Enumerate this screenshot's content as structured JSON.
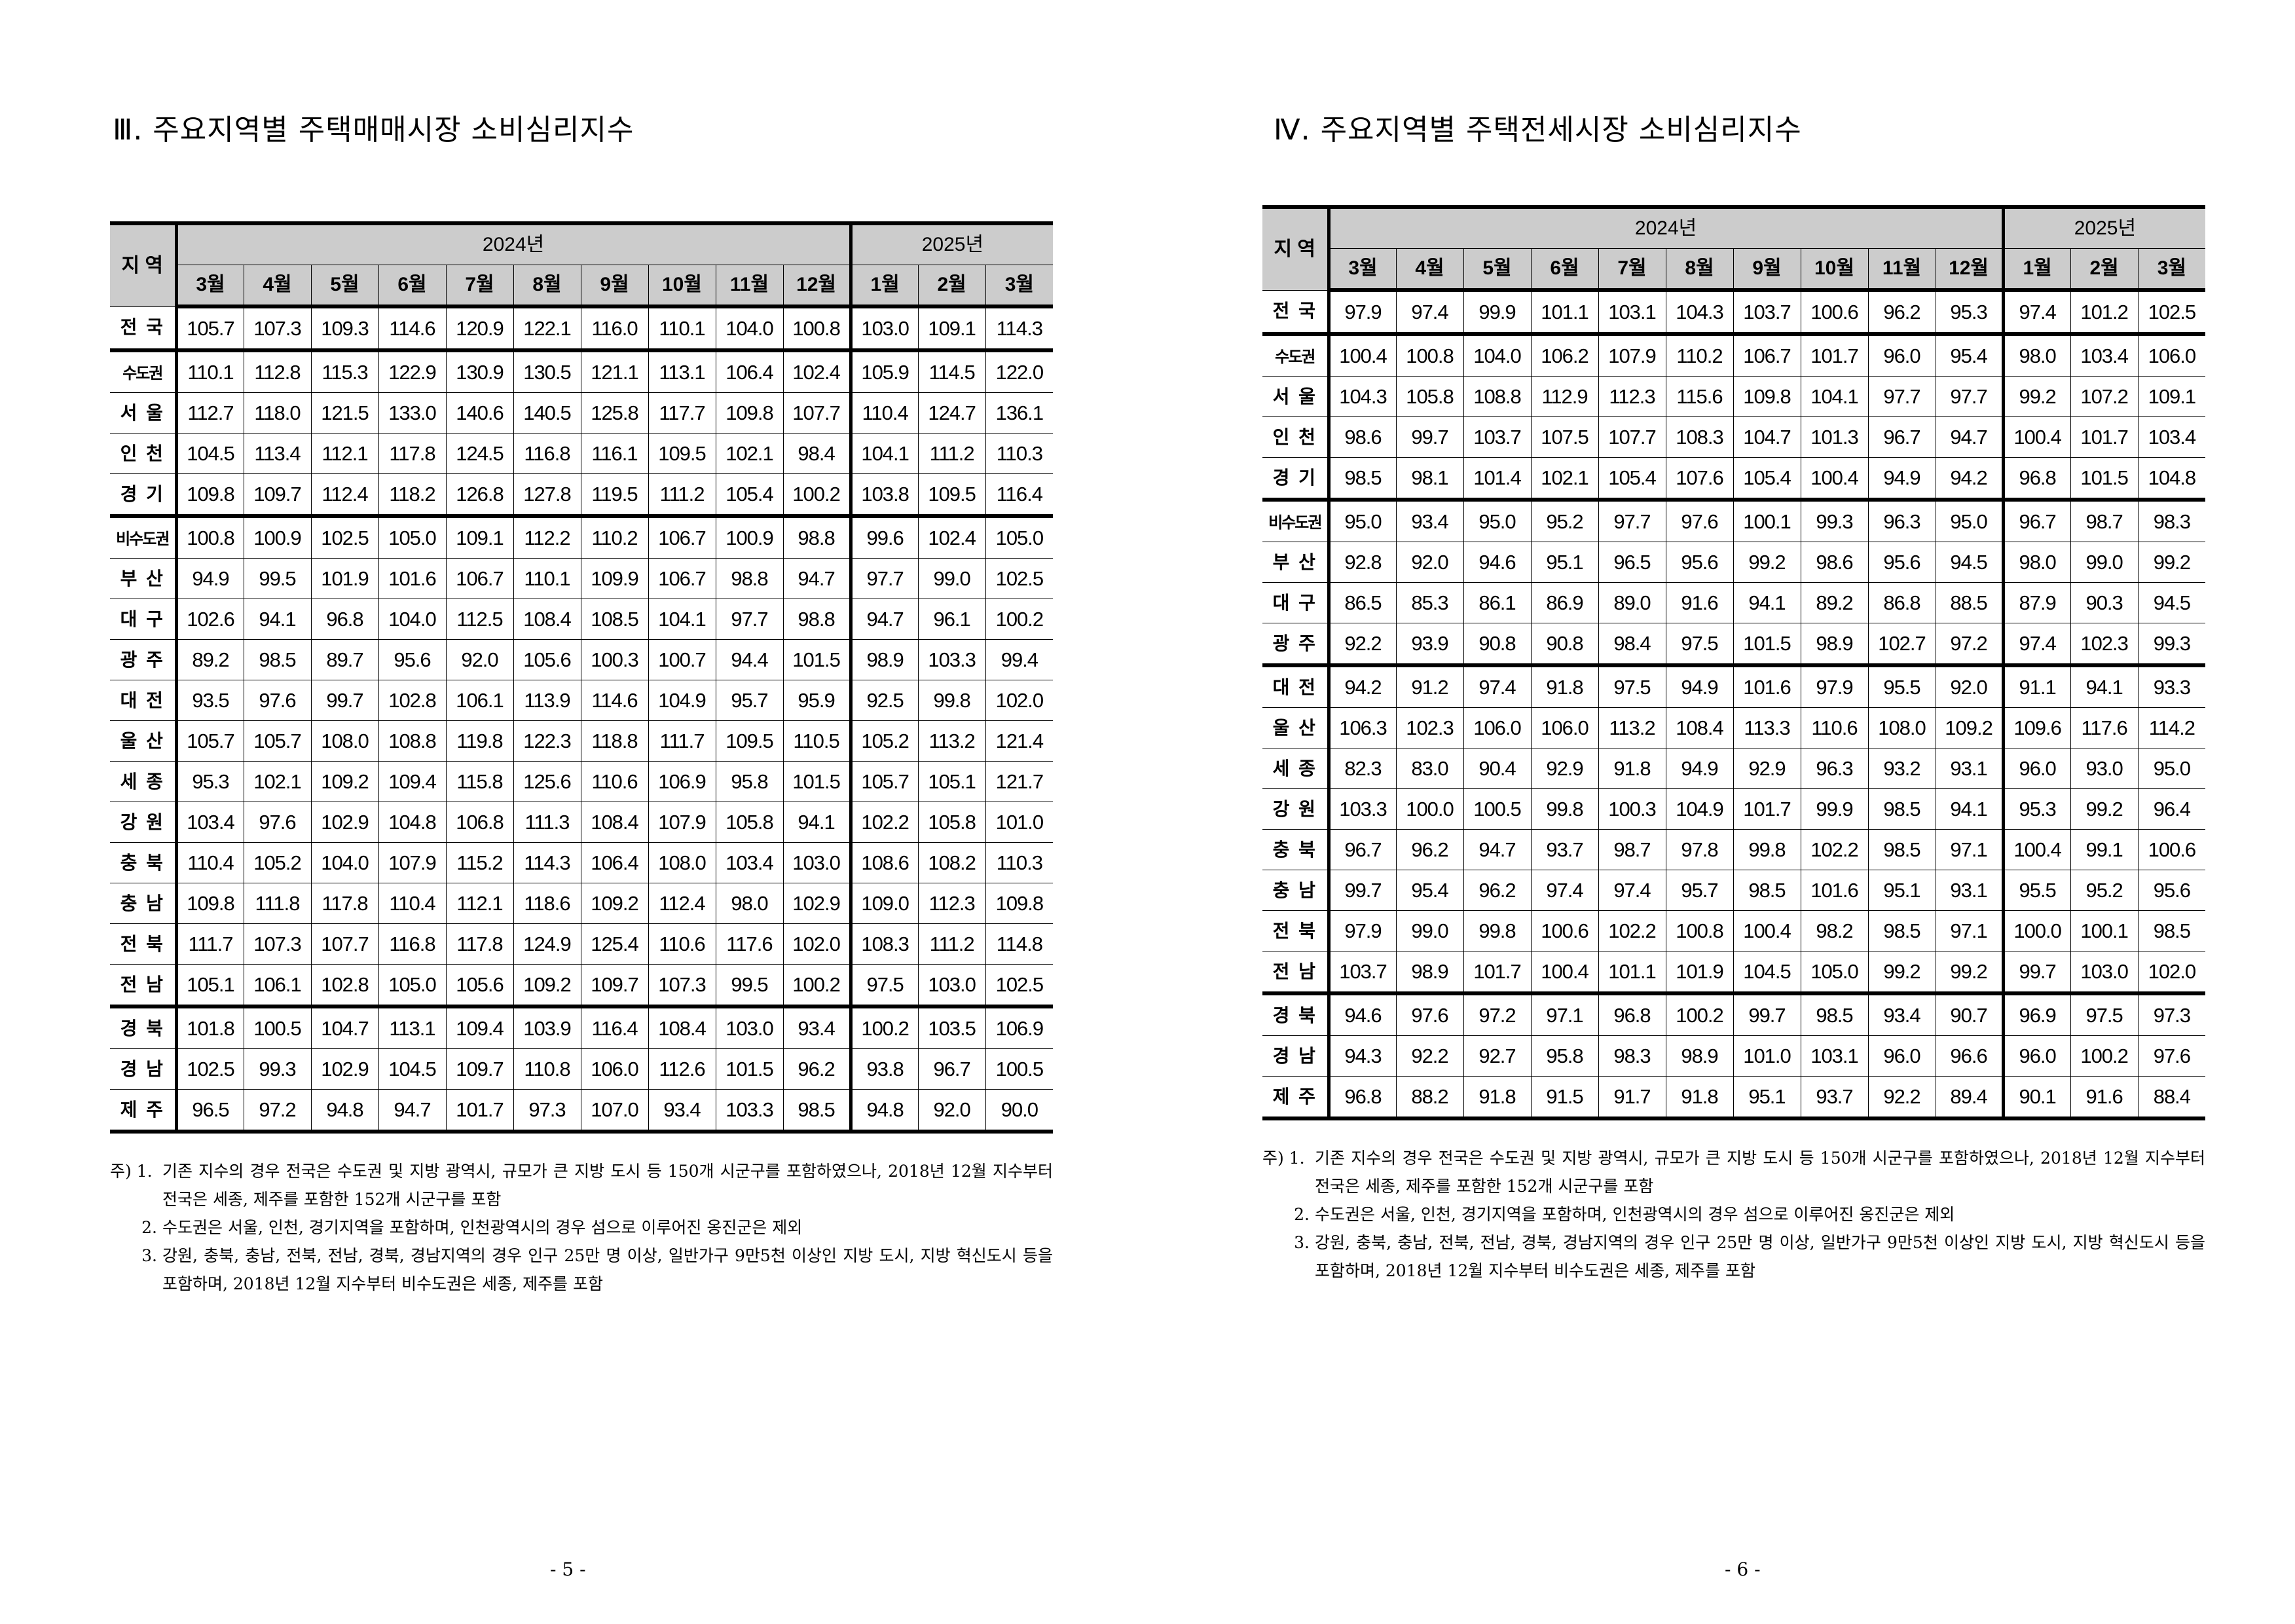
{
  "pages": [
    {
      "title": "Ⅲ. 주요지역별 주택매매시장 소비심리지수",
      "page_number": "- 5 -",
      "header": {
        "region_label": "지 역",
        "year1": "2024년",
        "year2": "2025년",
        "months": [
          "3월",
          "4월",
          "5월",
          "6월",
          "7월",
          "8월",
          "9월",
          "10월",
          "11월",
          "12월",
          "1월",
          "2월",
          "3월"
        ]
      },
      "rows": [
        {
          "region": "전 국",
          "values": [
            "105.7",
            "107.3",
            "109.3",
            "114.6",
            "120.9",
            "122.1",
            "116.0",
            "110.1",
            "104.0",
            "100.8",
            "103.0",
            "109.1",
            "114.3"
          ]
        },
        {
          "region": "수도권",
          "values": [
            "110.1",
            "112.8",
            "115.3",
            "122.9",
            "130.9",
            "130.5",
            "121.1",
            "113.1",
            "106.4",
            "102.4",
            "105.9",
            "114.5",
            "122.0"
          ]
        },
        {
          "region": "서 울",
          "values": [
            "112.7",
            "118.0",
            "121.5",
            "133.0",
            "140.6",
            "140.5",
            "125.8",
            "117.7",
            "109.8",
            "107.7",
            "110.4",
            "124.7",
            "136.1"
          ]
        },
        {
          "region": "인 천",
          "values": [
            "104.5",
            "113.4",
            "112.1",
            "117.8",
            "124.5",
            "116.8",
            "116.1",
            "109.5",
            "102.1",
            "98.4",
            "104.1",
            "111.2",
            "110.3"
          ]
        },
        {
          "region": "경 기",
          "values": [
            "109.8",
            "109.7",
            "112.4",
            "118.2",
            "126.8",
            "127.8",
            "119.5",
            "111.2",
            "105.4",
            "100.2",
            "103.8",
            "109.5",
            "116.4"
          ]
        },
        {
          "region": "비수도권",
          "values": [
            "100.8",
            "100.9",
            "102.5",
            "105.0",
            "109.1",
            "112.2",
            "110.2",
            "106.7",
            "100.9",
            "98.8",
            "99.6",
            "102.4",
            "105.0"
          ]
        },
        {
          "region": "부 산",
          "values": [
            "94.9",
            "99.5",
            "101.9",
            "101.6",
            "106.7",
            "110.1",
            "109.9",
            "106.7",
            "98.8",
            "94.7",
            "97.7",
            "99.0",
            "102.5"
          ]
        },
        {
          "region": "대 구",
          "values": [
            "102.6",
            "94.1",
            "96.8",
            "104.0",
            "112.5",
            "108.4",
            "108.5",
            "104.1",
            "97.7",
            "98.8",
            "94.7",
            "96.1",
            "100.2"
          ]
        },
        {
          "region": "광 주",
          "values": [
            "89.2",
            "98.5",
            "89.7",
            "95.6",
            "92.0",
            "105.6",
            "100.3",
            "100.7",
            "94.4",
            "101.5",
            "98.9",
            "103.3",
            "99.4"
          ]
        },
        {
          "region": "대 전",
          "values": [
            "93.5",
            "97.6",
            "99.7",
            "102.8",
            "106.1",
            "113.9",
            "114.6",
            "104.9",
            "95.7",
            "95.9",
            "92.5",
            "99.8",
            "102.0"
          ]
        },
        {
          "region": "울 산",
          "values": [
            "105.7",
            "105.7",
            "108.0",
            "108.8",
            "119.8",
            "122.3",
            "118.8",
            "111.7",
            "109.5",
            "110.5",
            "105.2",
            "113.2",
            "121.4"
          ]
        },
        {
          "region": "세 종",
          "values": [
            "95.3",
            "102.1",
            "109.2",
            "109.4",
            "115.8",
            "125.6",
            "110.6",
            "106.9",
            "95.8",
            "101.5",
            "105.7",
            "105.1",
            "121.7"
          ]
        },
        {
          "region": "강 원",
          "values": [
            "103.4",
            "97.6",
            "102.9",
            "104.8",
            "106.8",
            "111.3",
            "108.4",
            "107.9",
            "105.8",
            "94.1",
            "102.2",
            "105.8",
            "101.0"
          ]
        },
        {
          "region": "충 북",
          "values": [
            "110.4",
            "105.2",
            "104.0",
            "107.9",
            "115.2",
            "114.3",
            "106.4",
            "108.0",
            "103.4",
            "103.0",
            "108.6",
            "108.2",
            "110.3"
          ]
        },
        {
          "region": "충 남",
          "values": [
            "109.8",
            "111.8",
            "117.8",
            "110.4",
            "112.1",
            "118.6",
            "109.2",
            "112.4",
            "98.0",
            "102.9",
            "109.0",
            "112.3",
            "109.8"
          ]
        },
        {
          "region": "전 북",
          "values": [
            "111.7",
            "107.3",
            "107.7",
            "116.8",
            "117.8",
            "124.9",
            "125.4",
            "110.6",
            "117.6",
            "102.0",
            "108.3",
            "111.2",
            "114.8"
          ]
        },
        {
          "region": "전 남",
          "values": [
            "105.1",
            "106.1",
            "102.8",
            "105.0",
            "105.6",
            "109.2",
            "109.7",
            "107.3",
            "99.5",
            "100.2",
            "97.5",
            "103.0",
            "102.5"
          ]
        },
        {
          "region": "경 북",
          "values": [
            "101.8",
            "100.5",
            "104.7",
            "113.1",
            "109.4",
            "103.9",
            "116.4",
            "108.4",
            "103.0",
            "93.4",
            "100.2",
            "103.5",
            "106.9"
          ]
        },
        {
          "region": "경 남",
          "values": [
            "102.5",
            "99.3",
            "102.9",
            "104.5",
            "109.7",
            "110.8",
            "106.0",
            "112.6",
            "101.5",
            "96.2",
            "93.8",
            "96.7",
            "100.5"
          ]
        },
        {
          "region": "제 주",
          "values": [
            "96.5",
            "97.2",
            "94.8",
            "94.7",
            "101.7",
            "97.3",
            "107.0",
            "93.4",
            "103.3",
            "98.5",
            "94.8",
            "92.0",
            "90.0"
          ]
        }
      ],
      "notes": [
        {
          "lead": "주) 1.",
          "text": "기존 지수의 경우 전국은 수도권 및 지방 광역시, 규모가 큰 지방 도시 등 150개 시군구를 포함하였으나, 2018년 12월 지수부터 전국은 세종, 제주를 포함한 152개 시군구를 포함"
        },
        {
          "lead": "2.",
          "text": "수도권은 서울, 인천, 경기지역을 포함하며, 인천광역시의 경우 섬으로 이루어진 옹진군은 제외"
        },
        {
          "lead": "3.",
          "text": "강원, 충북, 충남, 전북, 전남, 경북, 경남지역의 경우 인구 25만 명 이상, 일반가구 9만5천 이상인 지방 도시, 지방 혁신도시 등을 포함하며, 2018년 12월 지수부터 비수도권은 세종, 제주를 포함"
        }
      ]
    },
    {
      "title": "Ⅳ. 주요지역별 주택전세시장 소비심리지수",
      "page_number": "- 6 -",
      "header": {
        "region_label": "지 역",
        "year1": "2024년",
        "year2": "2025년",
        "months": [
          "3월",
          "4월",
          "5월",
          "6월",
          "7월",
          "8월",
          "9월",
          "10월",
          "11월",
          "12월",
          "1월",
          "2월",
          "3월"
        ]
      },
      "rows": [
        {
          "region": "전 국",
          "values": [
            "97.9",
            "97.4",
            "99.9",
            "101.1",
            "103.1",
            "104.3",
            "103.7",
            "100.6",
            "96.2",
            "95.3",
            "97.4",
            "101.2",
            "102.5"
          ]
        },
        {
          "region": "수도권",
          "values": [
            "100.4",
            "100.8",
            "104.0",
            "106.2",
            "107.9",
            "110.2",
            "106.7",
            "101.7",
            "96.0",
            "95.4",
            "98.0",
            "103.4",
            "106.0"
          ]
        },
        {
          "region": "서 울",
          "values": [
            "104.3",
            "105.8",
            "108.8",
            "112.9",
            "112.3",
            "115.6",
            "109.8",
            "104.1",
            "97.7",
            "97.7",
            "99.2",
            "107.2",
            "109.1"
          ]
        },
        {
          "region": "인 천",
          "values": [
            "98.6",
            "99.7",
            "103.7",
            "107.5",
            "107.7",
            "108.3",
            "104.7",
            "101.3",
            "96.7",
            "94.7",
            "100.4",
            "101.7",
            "103.4"
          ]
        },
        {
          "region": "경 기",
          "values": [
            "98.5",
            "98.1",
            "101.4",
            "102.1",
            "105.4",
            "107.6",
            "105.4",
            "100.4",
            "94.9",
            "94.2",
            "96.8",
            "101.5",
            "104.8"
          ]
        },
        {
          "region": "비수도권",
          "values": [
            "95.0",
            "93.4",
            "95.0",
            "95.2",
            "97.7",
            "97.6",
            "100.1",
            "99.3",
            "96.3",
            "95.0",
            "96.7",
            "98.7",
            "98.3"
          ]
        },
        {
          "region": "부 산",
          "values": [
            "92.8",
            "92.0",
            "94.6",
            "95.1",
            "96.5",
            "95.6",
            "99.2",
            "98.6",
            "95.6",
            "94.5",
            "98.0",
            "99.0",
            "99.2"
          ]
        },
        {
          "region": "대 구",
          "values": [
            "86.5",
            "85.3",
            "86.1",
            "86.9",
            "89.0",
            "91.6",
            "94.1",
            "89.2",
            "86.8",
            "88.5",
            "87.9",
            "90.3",
            "94.5"
          ]
        },
        {
          "region": "광 주",
          "values": [
            "92.2",
            "93.9",
            "90.8",
            "90.8",
            "98.4",
            "97.5",
            "101.5",
            "98.9",
            "102.7",
            "97.2",
            "97.4",
            "102.3",
            "99.3"
          ]
        },
        {
          "region": "대 전",
          "values": [
            "94.2",
            "91.2",
            "97.4",
            "91.8",
            "97.5",
            "94.9",
            "101.6",
            "97.9",
            "95.5",
            "92.0",
            "91.1",
            "94.1",
            "93.3"
          ]
        },
        {
          "region": "울 산",
          "values": [
            "106.3",
            "102.3",
            "106.0",
            "106.0",
            "113.2",
            "108.4",
            "113.3",
            "110.6",
            "108.0",
            "109.2",
            "109.6",
            "117.6",
            "114.2"
          ]
        },
        {
          "region": "세 종",
          "values": [
            "82.3",
            "83.0",
            "90.4",
            "92.9",
            "91.8",
            "94.9",
            "92.9",
            "96.3",
            "93.2",
            "93.1",
            "96.0",
            "93.0",
            "95.0"
          ]
        },
        {
          "region": "강 원",
          "values": [
            "103.3",
            "100.0",
            "100.5",
            "99.8",
            "100.3",
            "104.9",
            "101.7",
            "99.9",
            "98.5",
            "94.1",
            "95.3",
            "99.2",
            "96.4"
          ]
        },
        {
          "region": "충 북",
          "values": [
            "96.7",
            "96.2",
            "94.7",
            "93.7",
            "98.7",
            "97.8",
            "99.8",
            "102.2",
            "98.5",
            "97.1",
            "100.4",
            "99.1",
            "100.6"
          ]
        },
        {
          "region": "충 남",
          "values": [
            "99.7",
            "95.4",
            "96.2",
            "97.4",
            "97.4",
            "95.7",
            "98.5",
            "101.6",
            "95.1",
            "93.1",
            "95.5",
            "95.2",
            "95.6"
          ]
        },
        {
          "region": "전 북",
          "values": [
            "97.9",
            "99.0",
            "99.8",
            "100.6",
            "102.2",
            "100.8",
            "100.4",
            "98.2",
            "98.5",
            "97.1",
            "100.0",
            "100.1",
            "98.5"
          ]
        },
        {
          "region": "전 남",
          "values": [
            "103.7",
            "98.9",
            "101.7",
            "100.4",
            "101.1",
            "101.9",
            "104.5",
            "105.0",
            "99.2",
            "99.2",
            "99.7",
            "103.0",
            "102.0"
          ]
        },
        {
          "region": "경 북",
          "values": [
            "94.6",
            "97.6",
            "97.2",
            "97.1",
            "96.8",
            "100.2",
            "99.7",
            "98.5",
            "93.4",
            "90.7",
            "96.9",
            "97.5",
            "97.3"
          ]
        },
        {
          "region": "경 남",
          "values": [
            "94.3",
            "92.2",
            "92.7",
            "95.8",
            "98.3",
            "98.9",
            "101.0",
            "103.1",
            "96.0",
            "96.6",
            "96.0",
            "100.2",
            "97.6"
          ]
        },
        {
          "region": "제 주",
          "values": [
            "96.8",
            "88.2",
            "91.8",
            "91.5",
            "91.7",
            "91.8",
            "95.1",
            "93.7",
            "92.2",
            "89.4",
            "90.1",
            "91.6",
            "88.4"
          ]
        }
      ],
      "notes": [
        {
          "lead": "주) 1.",
          "text": "기존 지수의 경우 전국은 수도권 및 지방 광역시, 규모가 큰 지방 도시 등 150개 시군구를 포함하였으나, 2018년 12월 지수부터 전국은 세종, 제주를 포함한 152개 시군구를 포함"
        },
        {
          "lead": "2.",
          "text": "수도권은 서울, 인천, 경기지역을 포함하며, 인천광역시의 경우 섬으로 이루어진 옹진군은 제외"
        },
        {
          "lead": "3.",
          "text": "강원, 충북, 충남, 전북, 전남, 경북, 경남지역의 경우 인구 25만 명 이상, 일반가구 9만5천 이상인 지방 도시, 지방 혁신도시 등을 포함하며, 2018년 12월 지수부터 비수도권은 세종, 제주를 포함"
        }
      ]
    }
  ]
}
